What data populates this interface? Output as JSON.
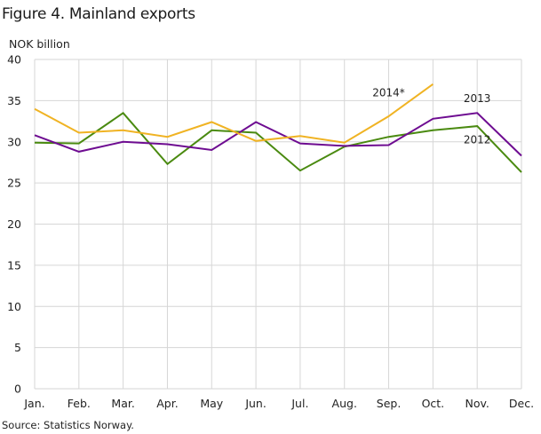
{
  "title": "Figure 4. Mainland exports",
  "unit_label": "NOK billion",
  "source": "Source: Statistics Norway.",
  "colors": {
    "2014*": "#f0b323",
    "2013": "#6e0c91",
    "2012": "#4a8a10",
    "grid": "#d6d6d6"
  },
  "chart_data": {
    "type": "line",
    "title": "Figure 4. Mainland exports",
    "xlabel": "",
    "ylabel": "NOK billion",
    "ylim": [
      0,
      40
    ],
    "yticks": [
      0,
      5,
      10,
      15,
      20,
      25,
      30,
      35,
      40
    ],
    "categories": [
      "Jan.",
      "Feb.",
      "Mar.",
      "Apr.",
      "May",
      "Jun.",
      "Jul.",
      "Aug.",
      "Sep.",
      "Oct.",
      "Nov.",
      "Dec."
    ],
    "grid": true,
    "legend_position": "inline labels",
    "series": [
      {
        "name": "2014*",
        "color": "#f0b323",
        "values": [
          34.0,
          31.1,
          31.4,
          30.6,
          32.4,
          30.1,
          30.7,
          29.9,
          33.1,
          37.0,
          null,
          null
        ]
      },
      {
        "name": "2013",
        "color": "#6e0c91",
        "values": [
          30.8,
          28.8,
          30.0,
          29.7,
          29.0,
          32.4,
          29.8,
          29.5,
          29.6,
          32.8,
          33.5,
          28.3
        ]
      },
      {
        "name": "2012",
        "color": "#4a8a10",
        "values": [
          29.9,
          29.8,
          33.5,
          27.3,
          31.4,
          31.1,
          26.5,
          29.4,
          30.6,
          31.4,
          31.9,
          26.3
        ]
      }
    ],
    "annotations": [
      {
        "text": "2014*",
        "x": "Sep.",
        "y": 35.5
      },
      {
        "text": "2013",
        "x": "Nov.",
        "y": 34.8
      },
      {
        "text": "2012",
        "x": "Nov.",
        "y": 29.8
      }
    ]
  }
}
